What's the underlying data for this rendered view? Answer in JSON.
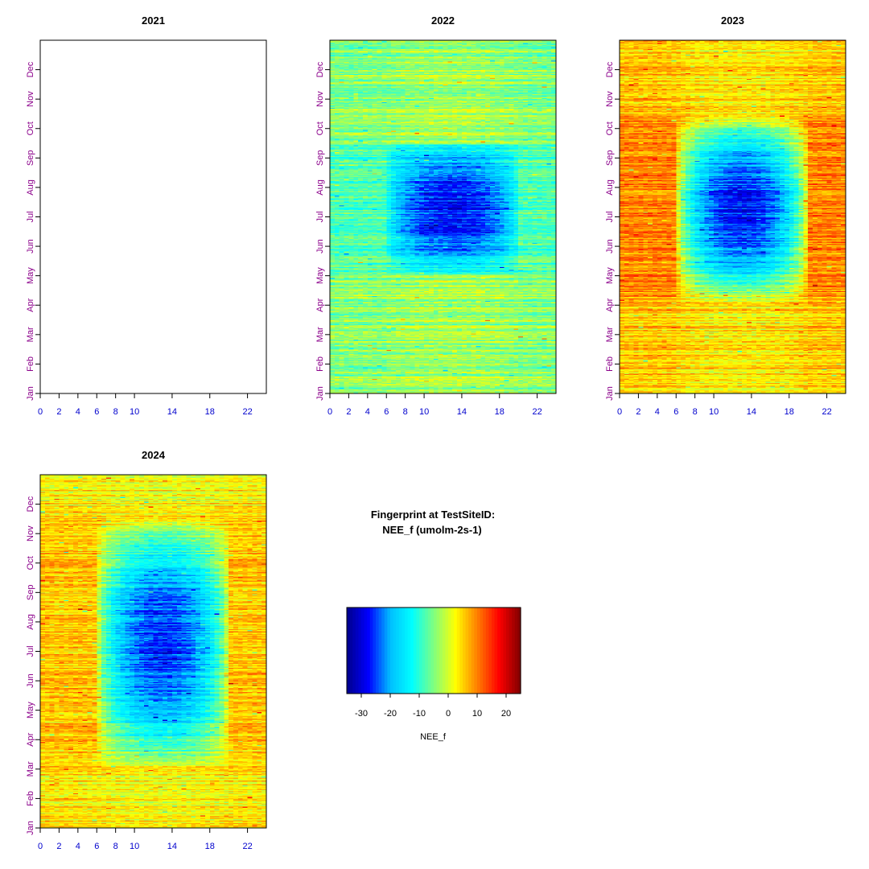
{
  "figure": {
    "title_line1": "Fingerprint at TestSiteID:",
    "title_line2": "NEE_f (umolm-2s-1)"
  },
  "chart_data": [
    {
      "type": "heatmap",
      "title": "2021",
      "has_data": false,
      "x_ticks": [
        0,
        2,
        4,
        6,
        8,
        10,
        14,
        18,
        22
      ],
      "x_range": [
        0,
        24
      ],
      "y_ticks": [
        "Jan",
        "Feb",
        "Mar",
        "Apr",
        "May",
        "Jun",
        "Jul",
        "Aug",
        "Sep",
        "Oct",
        "Nov",
        "Dec"
      ],
      "value_peak": 0,
      "night_value": 0,
      "growing_season": [
        "",
        ""
      ]
    },
    {
      "type": "heatmap",
      "title": "2022",
      "has_data": true,
      "x_ticks": [
        0,
        2,
        4,
        6,
        8,
        10,
        14,
        18,
        22
      ],
      "x_range": [
        0,
        24
      ],
      "y_ticks": [
        "Jan",
        "Feb",
        "Mar",
        "Apr",
        "May",
        "Jun",
        "Jul",
        "Aug",
        "Sep",
        "Oct",
        "Nov",
        "Dec"
      ],
      "value_peak": -28,
      "night_value": -8,
      "growing_season": [
        "May",
        "Sep"
      ]
    },
    {
      "type": "heatmap",
      "title": "2023",
      "has_data": true,
      "x_ticks": [
        0,
        2,
        4,
        6,
        8,
        10,
        14,
        18,
        22
      ],
      "x_range": [
        0,
        24
      ],
      "y_ticks": [
        "Jan",
        "Feb",
        "Mar",
        "Apr",
        "May",
        "Jun",
        "Jul",
        "Aug",
        "Sep",
        "Oct",
        "Nov",
        "Dec"
      ],
      "value_peak": -28,
      "night_value": 10,
      "growing_season": [
        "Apr",
        "Oct"
      ]
    },
    {
      "type": "heatmap",
      "title": "2024",
      "has_data": true,
      "x_ticks": [
        0,
        2,
        4,
        6,
        8,
        10,
        14,
        18,
        22
      ],
      "x_range": [
        0,
        24
      ],
      "y_ticks": [
        "Jan",
        "Feb",
        "Mar",
        "Apr",
        "May",
        "Jun",
        "Jul",
        "Aug",
        "Sep",
        "Oct",
        "Nov",
        "Dec"
      ],
      "value_peak": -26,
      "night_value": 6,
      "growing_season": [
        "Mar",
        "Nov"
      ]
    }
  ],
  "colorbar": {
    "label": "NEE_f",
    "ticks": [
      -30,
      -20,
      -10,
      0,
      10,
      20
    ],
    "range": [
      -35,
      25
    ],
    "colors": [
      "#00008b",
      "#0000ff",
      "#00bfff",
      "#00ffff",
      "#7fff7f",
      "#ffff00",
      "#ff7f00",
      "#ff0000",
      "#7f0000"
    ]
  }
}
